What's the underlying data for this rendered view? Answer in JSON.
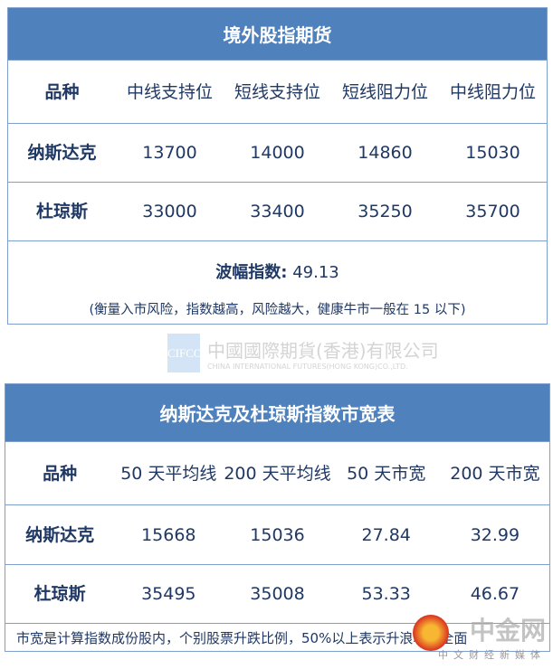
{
  "table1": {
    "title": "境外股指期货",
    "headers": [
      "品种",
      "中线支持位",
      "短线支持位",
      "短线阻力位",
      "中线阻力位"
    ],
    "rows": [
      [
        "纳斯达克",
        "13700",
        "14000",
        "14860",
        "15030"
      ],
      [
        "杜琼斯",
        "33000",
        "33400",
        "35250",
        "35700"
      ]
    ],
    "volatility_label": "波幅指数:",
    "volatility_value": "49.13",
    "note": "(衡量入市风险，指数越高，风险越大，健康牛市一般在 15 以下)"
  },
  "watermark": {
    "logo": "CIFCO",
    "cn": "中國國際期貨(香港)有限公司",
    "en": "CHINA INTERNATIONAL FUTURES(HONG KONG)CO.,LTD."
  },
  "table2": {
    "title": "纳斯达克及杜琼斯指数市宽表",
    "headers": [
      [
        "品种"
      ],
      [
        "50 天",
        "平均线"
      ],
      [
        "200 天",
        "平均线"
      ],
      [
        "50 天",
        "市宽"
      ],
      [
        "200 天",
        "市宽"
      ]
    ],
    "rows": [
      [
        "纳斯达克",
        "15668",
        "15036",
        "27.84",
        "32.99"
      ],
      [
        "杜琼斯",
        "35495",
        "35008",
        "53.33",
        "46.67"
      ]
    ],
    "note": "市宽是计算指数成份股内，个别股票升跌比例，50%以上表示升浪较为全面"
  },
  "brand": {
    "name": "中金网",
    "tagline": "中文财经新媒体"
  }
}
